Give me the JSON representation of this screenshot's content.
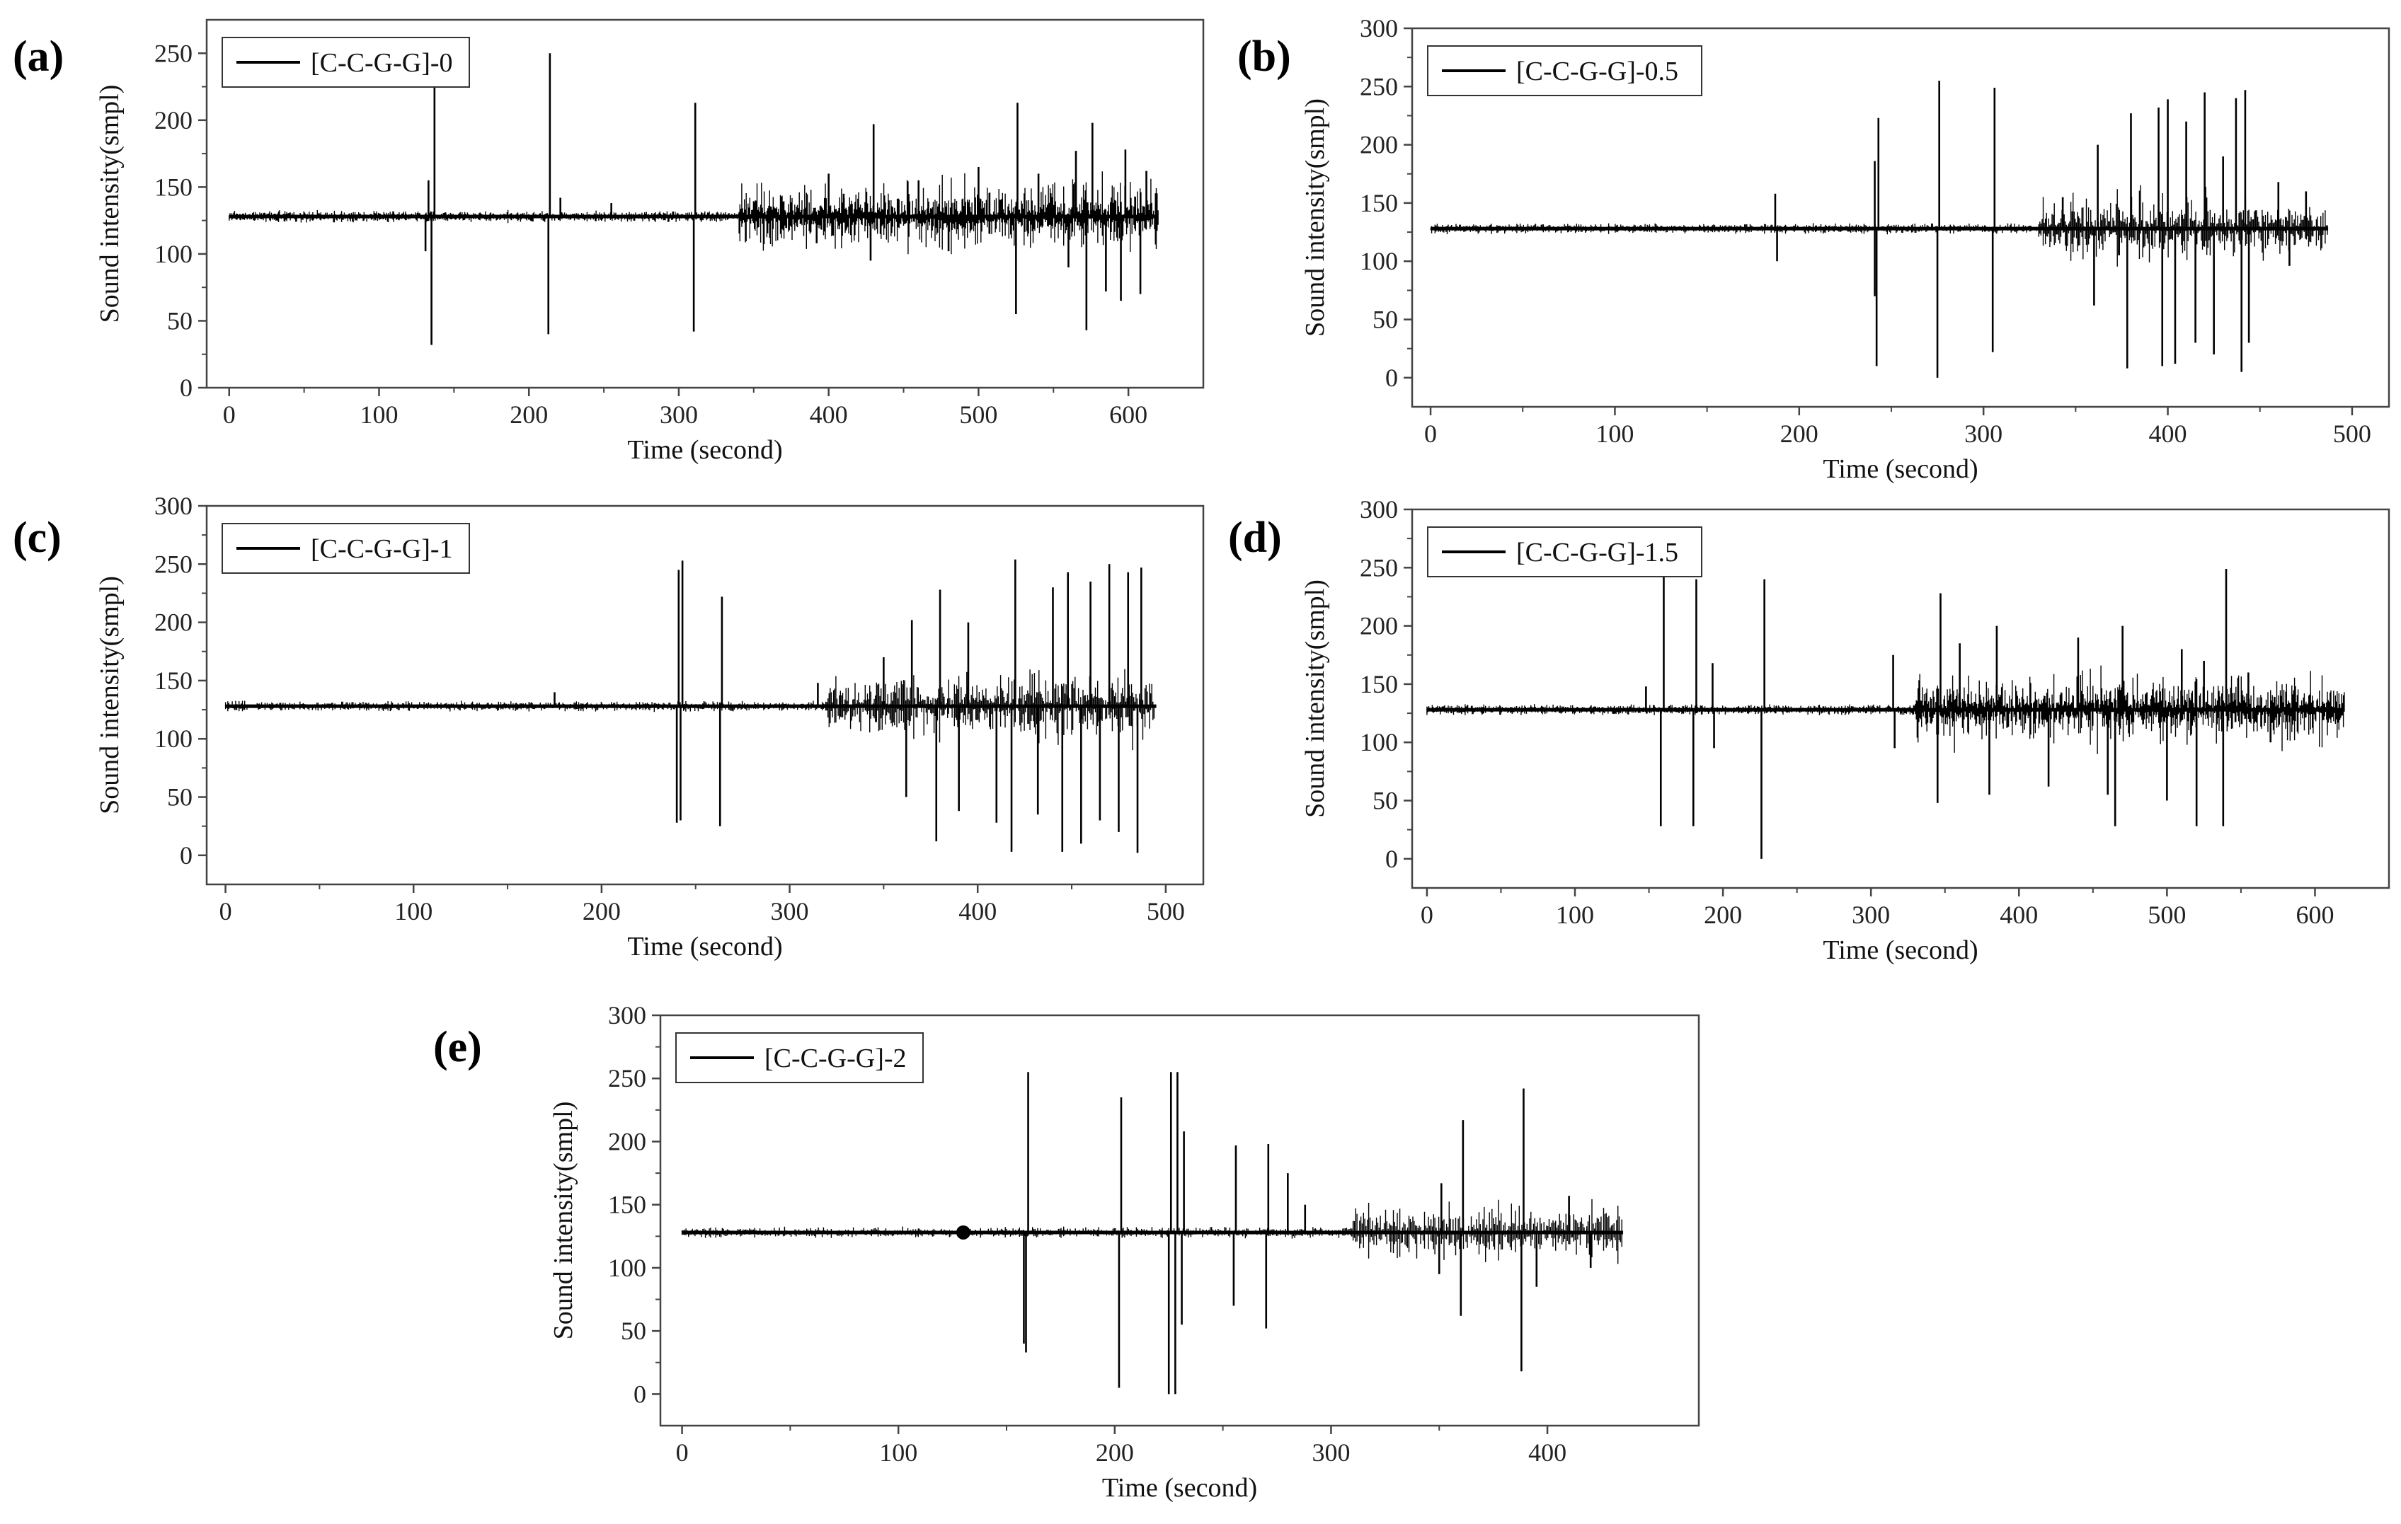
{
  "figure": {
    "background": "#ffffff",
    "line_color": "#000000"
  },
  "chart_data": [
    {
      "panel": "(a)",
      "type": "line",
      "title": "",
      "legend": "[C-C-G-G]-0",
      "legend_position": "top-left",
      "xlabel": "Time (second)",
      "ylabel": "Sound intensity(smpl)",
      "xlim": [
        -15,
        650
      ],
      "ylim": [
        0,
        275
      ],
      "xticks": [
        0,
        100,
        200,
        300,
        400,
        500,
        600
      ],
      "yticks": [
        0,
        50,
        100,
        150,
        200,
        250
      ],
      "x_end": 620,
      "baseline": 128,
      "spikes": [
        {
          "x": 135,
          "y": 32
        },
        {
          "x": 137,
          "y": 228
        },
        {
          "x": 133,
          "y": 155
        },
        {
          "x": 131,
          "y": 102
        },
        {
          "x": 213,
          "y": 40
        },
        {
          "x": 214,
          "y": 250
        },
        {
          "x": 221,
          "y": 142
        },
        {
          "x": 255,
          "y": 138
        },
        {
          "x": 310,
          "y": 42
        },
        {
          "x": 311,
          "y": 213
        },
        {
          "x": 392,
          "y": 108
        },
        {
          "x": 400,
          "y": 160
        },
        {
          "x": 410,
          "y": 145
        },
        {
          "x": 428,
          "y": 95
        },
        {
          "x": 430,
          "y": 197
        },
        {
          "x": 460,
          "y": 155
        },
        {
          "x": 480,
          "y": 102
        },
        {
          "x": 500,
          "y": 165
        },
        {
          "x": 525,
          "y": 55
        },
        {
          "x": 526,
          "y": 213
        },
        {
          "x": 540,
          "y": 160
        },
        {
          "x": 560,
          "y": 90
        },
        {
          "x": 565,
          "y": 177
        },
        {
          "x": 572,
          "y": 43
        },
        {
          "x": 576,
          "y": 198
        },
        {
          "x": 585,
          "y": 72
        },
        {
          "x": 595,
          "y": 65
        },
        {
          "x": 598,
          "y": 178
        },
        {
          "x": 608,
          "y": 70
        },
        {
          "x": 612,
          "y": 162
        }
      ],
      "noise_start": 340,
      "noise_amplitude": 32
    },
    {
      "panel": "(b)",
      "type": "line",
      "title": "",
      "legend": "[C-C-G-G]-0.5",
      "legend_position": "top-left",
      "xlabel": "Time (second)",
      "ylabel": "Sound intensity(smpl)",
      "xlim": [
        -10,
        520
      ],
      "ylim": [
        -25,
        300
      ],
      "xticks": [
        0,
        100,
        200,
        300,
        400,
        500
      ],
      "yticks": [
        0,
        50,
        100,
        150,
        200,
        250,
        300
      ],
      "x_end": 487,
      "baseline": 128,
      "spikes": [
        {
          "x": 187,
          "y": 158
        },
        {
          "x": 188,
          "y": 100
        },
        {
          "x": 242,
          "y": 10
        },
        {
          "x": 243,
          "y": 223
        },
        {
          "x": 241,
          "y": 186
        },
        {
          "x": 241,
          "y": 70
        },
        {
          "x": 275,
          "y": 0
        },
        {
          "x": 276,
          "y": 255
        },
        {
          "x": 305,
          "y": 22
        },
        {
          "x": 306,
          "y": 249
        },
        {
          "x": 343,
          "y": 155
        },
        {
          "x": 360,
          "y": 62
        },
        {
          "x": 362,
          "y": 200
        },
        {
          "x": 378,
          "y": 8
        },
        {
          "x": 380,
          "y": 227
        },
        {
          "x": 395,
          "y": 232
        },
        {
          "x": 397,
          "y": 10
        },
        {
          "x": 400,
          "y": 239
        },
        {
          "x": 404,
          "y": 12
        },
        {
          "x": 410,
          "y": 220
        },
        {
          "x": 415,
          "y": 30
        },
        {
          "x": 420,
          "y": 245
        },
        {
          "x": 425,
          "y": 20
        },
        {
          "x": 430,
          "y": 190
        },
        {
          "x": 437,
          "y": 240
        },
        {
          "x": 440,
          "y": 5
        },
        {
          "x": 442,
          "y": 247
        },
        {
          "x": 444,
          "y": 30
        },
        {
          "x": 460,
          "y": 168
        },
        {
          "x": 466,
          "y": 96
        },
        {
          "x": 475,
          "y": 160
        }
      ],
      "noise_start": 330,
      "noise_amplitude": 35
    },
    {
      "panel": "(c)",
      "type": "line",
      "title": "",
      "legend": "[C-C-G-G]-1",
      "legend_position": "top-left",
      "xlabel": "Time (second)",
      "ylabel": "Sound intensity(smpl)",
      "xlim": [
        -10,
        520
      ],
      "ylim": [
        -25,
        300
      ],
      "xticks": [
        0,
        100,
        200,
        300,
        400,
        500
      ],
      "yticks": [
        0,
        50,
        100,
        150,
        200,
        250,
        300
      ],
      "x_end": 495,
      "baseline": 128,
      "spikes": [
        {
          "x": 175,
          "y": 140
        },
        {
          "x": 240,
          "y": 28
        },
        {
          "x": 241,
          "y": 245
        },
        {
          "x": 243,
          "y": 253
        },
        {
          "x": 242,
          "y": 30
        },
        {
          "x": 263,
          "y": 25
        },
        {
          "x": 264,
          "y": 222
        },
        {
          "x": 315,
          "y": 148
        },
        {
          "x": 350,
          "y": 170
        },
        {
          "x": 362,
          "y": 50
        },
        {
          "x": 365,
          "y": 202
        },
        {
          "x": 378,
          "y": 12
        },
        {
          "x": 380,
          "y": 228
        },
        {
          "x": 390,
          "y": 38
        },
        {
          "x": 395,
          "y": 200
        },
        {
          "x": 410,
          "y": 28
        },
        {
          "x": 418,
          "y": 3
        },
        {
          "x": 420,
          "y": 254
        },
        {
          "x": 432,
          "y": 35
        },
        {
          "x": 440,
          "y": 230
        },
        {
          "x": 445,
          "y": 3
        },
        {
          "x": 448,
          "y": 243
        },
        {
          "x": 455,
          "y": 10
        },
        {
          "x": 460,
          "y": 235
        },
        {
          "x": 465,
          "y": 30
        },
        {
          "x": 470,
          "y": 250
        },
        {
          "x": 475,
          "y": 20
        },
        {
          "x": 480,
          "y": 243
        },
        {
          "x": 485,
          "y": 2
        },
        {
          "x": 487,
          "y": 247
        }
      ],
      "noise_start": 320,
      "noise_amplitude": 38
    },
    {
      "panel": "(d)",
      "type": "line",
      "title": "",
      "legend": "[C-C-G-G]-1.5",
      "legend_position": "top-left",
      "xlabel": "Time (second)",
      "ylabel": "Sound intensity(smpl)",
      "xlim": [
        -10,
        650
      ],
      "ylim": [
        -25,
        300
      ],
      "xticks": [
        0,
        100,
        200,
        300,
        400,
        500,
        600
      ],
      "yticks": [
        0,
        50,
        100,
        150,
        200,
        250,
        300
      ],
      "x_end": 620,
      "baseline": 128,
      "spikes": [
        {
          "x": 148,
          "y": 148
        },
        {
          "x": 158,
          "y": 28
        },
        {
          "x": 160,
          "y": 245
        },
        {
          "x": 180,
          "y": 28
        },
        {
          "x": 182,
          "y": 240
        },
        {
          "x": 193,
          "y": 168
        },
        {
          "x": 194,
          "y": 95
        },
        {
          "x": 226,
          "y": 0
        },
        {
          "x": 228,
          "y": 240
        },
        {
          "x": 315,
          "y": 175
        },
        {
          "x": 316,
          "y": 95
        },
        {
          "x": 345,
          "y": 48
        },
        {
          "x": 347,
          "y": 228
        },
        {
          "x": 360,
          "y": 185
        },
        {
          "x": 380,
          "y": 55
        },
        {
          "x": 385,
          "y": 200
        },
        {
          "x": 420,
          "y": 62
        },
        {
          "x": 440,
          "y": 190
        },
        {
          "x": 460,
          "y": 55
        },
        {
          "x": 465,
          "y": 28
        },
        {
          "x": 470,
          "y": 200
        },
        {
          "x": 500,
          "y": 50
        },
        {
          "x": 510,
          "y": 180
        },
        {
          "x": 520,
          "y": 28
        },
        {
          "x": 525,
          "y": 170
        },
        {
          "x": 538,
          "y": 28
        },
        {
          "x": 540,
          "y": 249
        },
        {
          "x": 555,
          "y": 160
        },
        {
          "x": 570,
          "y": 100
        }
      ],
      "noise_start": 330,
      "noise_amplitude": 36
    },
    {
      "panel": "(e)",
      "type": "line",
      "title": "",
      "legend": "[C-C-G-G]-2",
      "legend_position": "top-left",
      "xlabel": "Time (second)",
      "ylabel": "Sound intensity(smpl)",
      "xlim": [
        -10,
        470
      ],
      "ylim": [
        -25,
        300
      ],
      "xticks": [
        0,
        100,
        200,
        300,
        400
      ],
      "yticks": [
        0,
        50,
        100,
        150,
        200,
        250,
        300
      ],
      "x_end": 435,
      "baseline": 128,
      "dot_marker": {
        "x": 130,
        "y": 128
      },
      "spikes": [
        {
          "x": 159,
          "y": 33
        },
        {
          "x": 160,
          "y": 255
        },
        {
          "x": 158,
          "y": 40
        },
        {
          "x": 202,
          "y": 5
        },
        {
          "x": 203,
          "y": 235
        },
        {
          "x": 225,
          "y": 0
        },
        {
          "x": 226,
          "y": 255
        },
        {
          "x": 228,
          "y": 0
        },
        {
          "x": 229,
          "y": 255
        },
        {
          "x": 231,
          "y": 55
        },
        {
          "x": 232,
          "y": 208
        },
        {
          "x": 255,
          "y": 70
        },
        {
          "x": 256,
          "y": 197
        },
        {
          "x": 270,
          "y": 52
        },
        {
          "x": 271,
          "y": 198
        },
        {
          "x": 280,
          "y": 175
        },
        {
          "x": 288,
          "y": 150
        },
        {
          "x": 350,
          "y": 95
        },
        {
          "x": 351,
          "y": 167
        },
        {
          "x": 360,
          "y": 62
        },
        {
          "x": 361,
          "y": 217
        },
        {
          "x": 388,
          "y": 18
        },
        {
          "x": 389,
          "y": 242
        },
        {
          "x": 395,
          "y": 85
        },
        {
          "x": 410,
          "y": 157
        },
        {
          "x": 420,
          "y": 100
        }
      ],
      "noise_start": 310,
      "noise_amplitude": 25
    }
  ]
}
